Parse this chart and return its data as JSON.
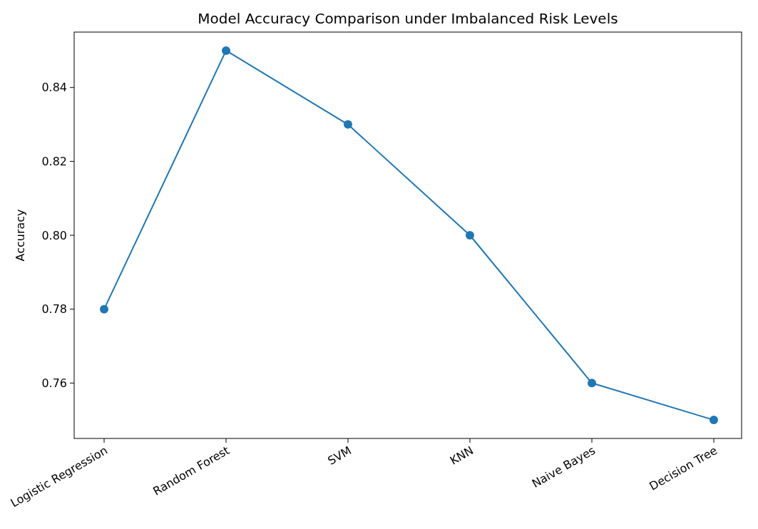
{
  "chart_data": {
    "type": "line",
    "title": "Model Accuracy Comparison under Imbalanced Risk Levels",
    "ylabel": "Accuracy",
    "categories": [
      "Logistic Regression",
      "Random Forest",
      "SVM",
      "KNN",
      "Naive Bayes",
      "Decision Tree"
    ],
    "series": [
      {
        "color": "#1f77b4",
        "values": [
          0.78,
          0.85,
          0.83,
          0.8,
          0.76,
          0.75
        ]
      }
    ],
    "ylim": [
      0.745,
      0.855
    ],
    "yticks": [
      {
        "value": 0.76,
        "label": "0.76"
      },
      {
        "value": 0.78,
        "label": "0.78"
      },
      {
        "value": 0.8,
        "label": "0.80"
      },
      {
        "value": 0.82,
        "label": "0.82"
      },
      {
        "value": 0.84,
        "label": "0.84"
      }
    ],
    "marker": "circle",
    "line_style": "solid",
    "grid": false
  }
}
